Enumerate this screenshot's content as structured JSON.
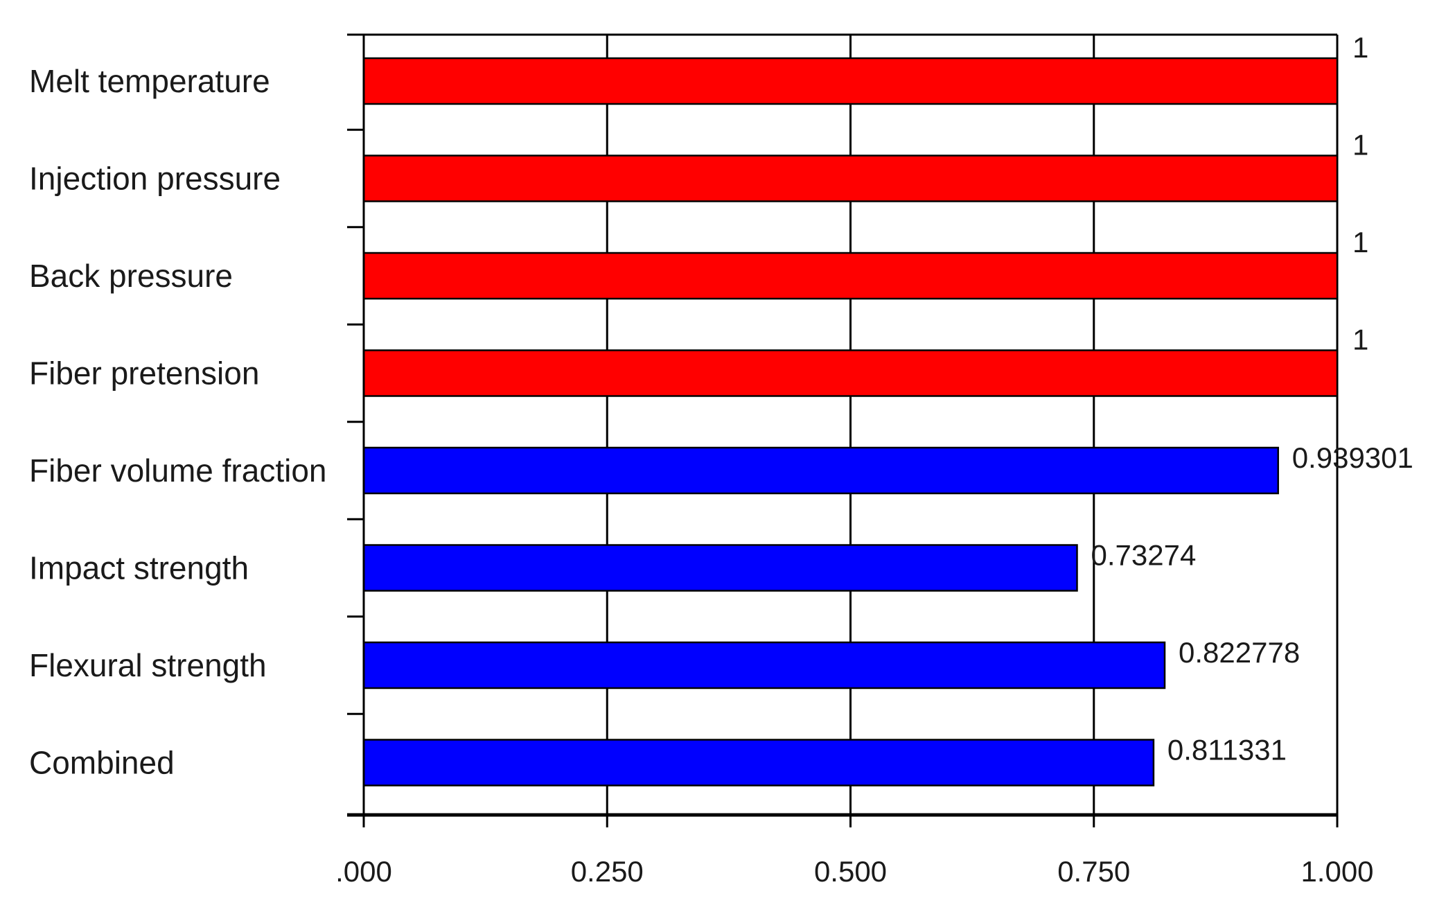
{
  "chart_data": {
    "type": "bar",
    "orientation": "horizontal",
    "categories": [
      "Melt temperature",
      "Injection pressure",
      "Back pressure",
      "Fiber pretension",
      "Fiber volume fraction",
      "Impact strength",
      "Flexural strength",
      "Combined"
    ],
    "values": [
      1,
      1,
      1,
      1,
      0.939301,
      0.73274,
      0.822778,
      0.811331
    ],
    "value_labels": [
      "1",
      "1",
      "1",
      "1",
      "0.939301",
      "0.73274",
      "0.822778",
      "0.811331"
    ],
    "bar_colors": [
      "#ff0000",
      "#ff0000",
      "#ff0000",
      "#ff0000",
      "#0000ff",
      "#0000ff",
      "#0000ff",
      "#0000ff"
    ],
    "xlim": [
      0,
      1
    ],
    "x_ticks": [
      0,
      0.25,
      0.5,
      0.75,
      1
    ],
    "x_tick_labels": [
      ".000",
      "0.250",
      "0.500",
      "0.750",
      "1.000"
    ],
    "grid": "vertical",
    "title": "",
    "xlabel": "",
    "ylabel": ""
  }
}
